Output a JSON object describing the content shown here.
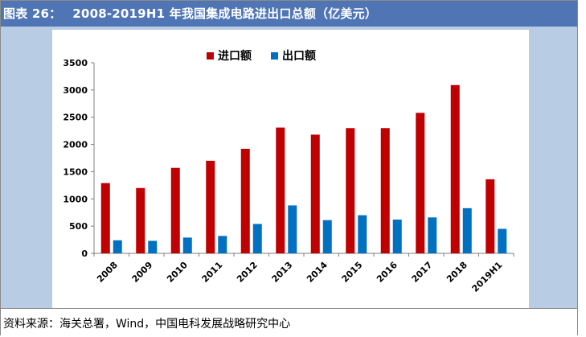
{
  "header": {
    "label": "图表 26：",
    "title": "2008-2019H1 年我国集成电路进出口总额（亿美元）"
  },
  "source": "资料来源：海关总署，Wind，中国电科发展战略研究中心",
  "colors": {
    "import": "#c00000",
    "export": "#0070c0",
    "frame": "#4f75b5",
    "panel": "#b8cce4"
  },
  "chart_data": {
    "type": "bar",
    "categories": [
      "2008",
      "2009",
      "2010",
      "2011",
      "2012",
      "2013",
      "2014",
      "2015",
      "2016",
      "2017",
      "2018",
      "2019H1"
    ],
    "series": [
      {
        "name": "进口额",
        "values": [
          1290,
          1200,
          1570,
          1700,
          1920,
          2310,
          2180,
          2300,
          2300,
          2580,
          3090,
          1360
        ]
      },
      {
        "name": "出口额",
        "values": [
          240,
          230,
          290,
          320,
          540,
          880,
          610,
          700,
          620,
          660,
          830,
          450
        ]
      }
    ],
    "title": "",
    "xlabel": "",
    "ylabel": "",
    "ylim": [
      0,
      3500
    ],
    "yticks": [
      "0",
      "500",
      "1000",
      "1500",
      "2000",
      "2500",
      "3000",
      "3500"
    ],
    "grid": false,
    "legend_position": "top-center"
  }
}
